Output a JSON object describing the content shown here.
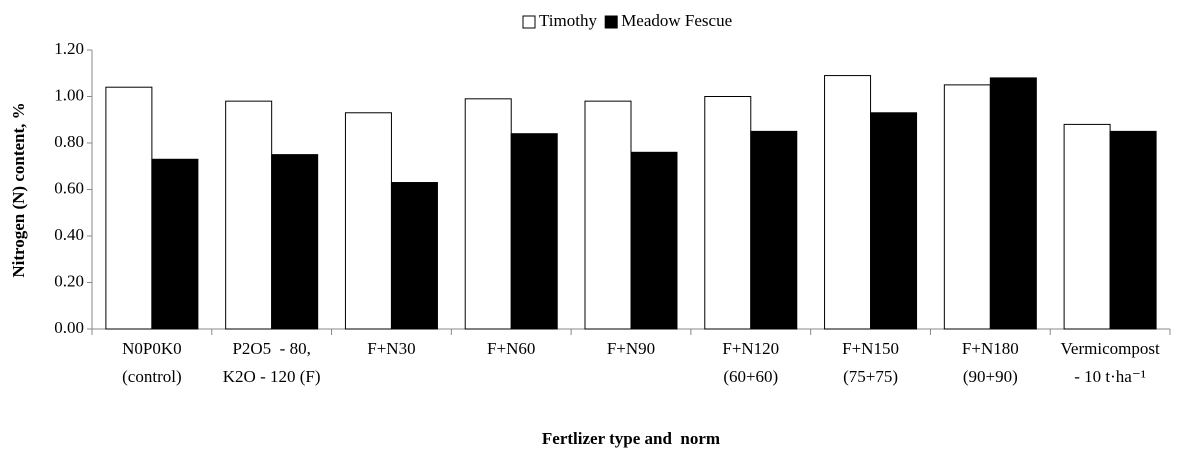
{
  "chart_data": {
    "type": "bar",
    "x_label": "Fertlizer type and  norm",
    "y_label": "Nitrogen (N) content, %",
    "categories": [
      "N0P0K0\n(control)",
      "P2O5  - 80,\nK2O - 120 (F)",
      "F+N30",
      "F+N60",
      "F+N90",
      "F+N120\n(60+60)",
      "F+N150\n(75+75)",
      "F+N180\n(90+90)",
      "Vermicompost\n- 10 t·ha⁻¹"
    ],
    "series": [
      {
        "name": "Timothy",
        "color": "#ffffff",
        "values": [
          1.04,
          0.98,
          0.93,
          0.99,
          0.98,
          1.0,
          1.09,
          1.05,
          0.88
        ]
      },
      {
        "name": "Meadow Fescue",
        "color": "#000000",
        "values": [
          0.73,
          0.75,
          0.63,
          0.84,
          0.76,
          0.85,
          0.93,
          1.08,
          0.85
        ]
      }
    ],
    "ylim": [
      0,
      1.2
    ],
    "yticks": [
      {
        "value": 0,
        "label": "0.00"
      },
      {
        "value": 0.2,
        "label": "0.20"
      },
      {
        "value": 0.4,
        "label": "0.40"
      },
      {
        "value": 0.6,
        "label": "0.60"
      },
      {
        "value": 0.8,
        "label": "0.80"
      },
      {
        "value": 1,
        "label": "1.00"
      },
      {
        "value": 1.2,
        "label": "1.20"
      }
    ],
    "legend": "top"
  }
}
